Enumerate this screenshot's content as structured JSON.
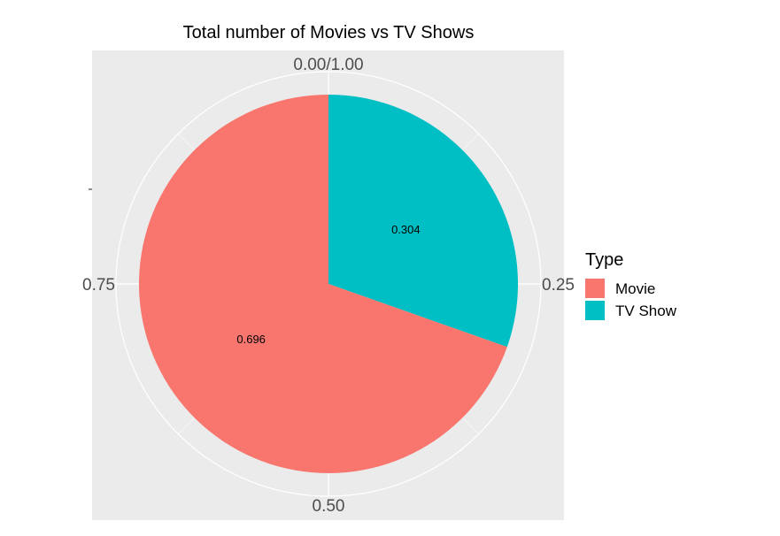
{
  "chart_data": {
    "type": "pie",
    "title": "Total number of Movies vs TV Shows",
    "theta_ticks": [
      "0.00/1.00",
      "0.25",
      "0.50",
      "0.75"
    ],
    "theta_tick_values": [
      0,
      0.25,
      0.5,
      0.75
    ],
    "slices": [
      {
        "label": "TV Show",
        "value": 0.304,
        "color": "#00BFC4"
      },
      {
        "label": "Movie",
        "value": 0.696,
        "color": "#F8766D"
      }
    ],
    "legend": {
      "title": "Type",
      "position": "right",
      "entries": [
        {
          "label": "Movie",
          "color": "#F8766D"
        },
        {
          "label": "TV Show",
          "color": "#00BFC4"
        }
      ]
    },
    "panel_background": "#EBEBEB",
    "grid_color": "#FFFFFF",
    "grid": true
  }
}
